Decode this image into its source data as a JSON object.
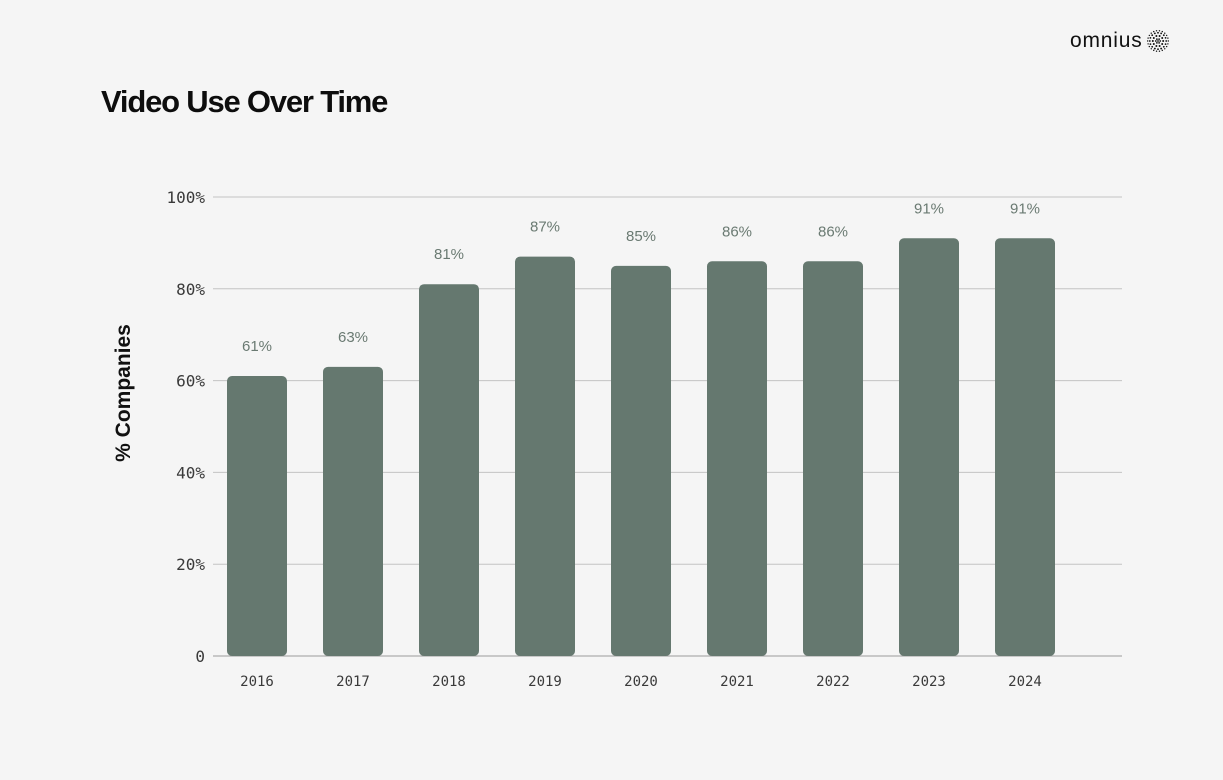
{
  "title": "Video Use Over Time",
  "brand": {
    "name": "omnius",
    "logo_icon": "dotted-sunburst-icon"
  },
  "colors": {
    "bar": "#65786f",
    "grid": "#c4c4c4",
    "axis": "#9a9a9a",
    "data_label": "#6a7a72",
    "background": "#f5f5f5"
  },
  "chart_data": {
    "type": "bar",
    "title": "Video Use Over Time",
    "xlabel": "",
    "ylabel": "% Companies",
    "ylim": [
      0,
      100
    ],
    "yticks": [
      0,
      20,
      40,
      60,
      80,
      100
    ],
    "ytick_labels": [
      "0",
      "20%",
      "40%",
      "60%",
      "80%",
      "100%"
    ],
    "grid": true,
    "categories": [
      "2016",
      "2017",
      "2018",
      "2019",
      "2020",
      "2021",
      "2022",
      "2023",
      "2024"
    ],
    "values": [
      61,
      63,
      81,
      87,
      85,
      86,
      86,
      91,
      91
    ],
    "data_labels": [
      "61%",
      "63%",
      "81%",
      "87%",
      "85%",
      "86%",
      "86%",
      "91%",
      "91%"
    ]
  }
}
